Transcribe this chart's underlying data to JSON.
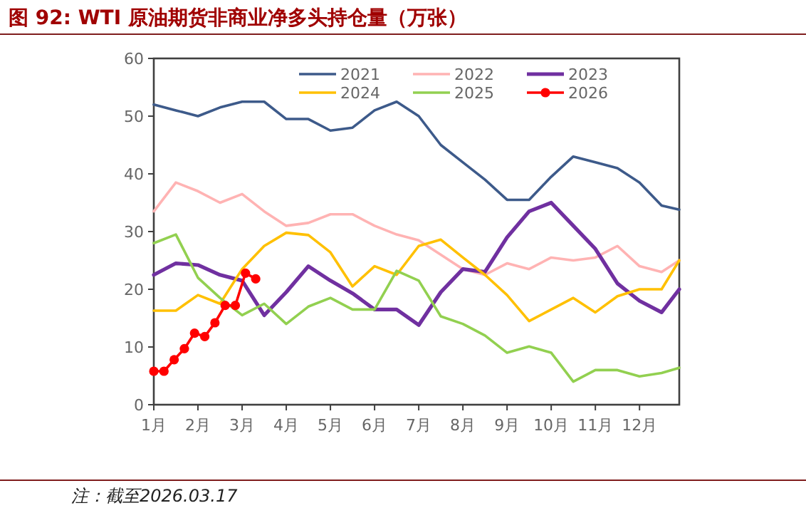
{
  "chart_data": {
    "type": "line",
    "title": "图 92:  WTI 原油期货非商业净多头持仓量（万张）",
    "annotations": [
      "注：截至2026.03.17"
    ],
    "x": [
      1,
      1.5,
      2,
      2.5,
      3,
      3.5,
      4,
      4.5,
      5,
      5.5,
      6,
      6.5,
      7,
      7.5,
      8,
      8.5,
      9,
      9.5,
      10,
      10.5,
      11,
      11.5,
      12,
      12.5,
      12.9
    ],
    "series": [
      {
        "name": "2021",
        "color": "#3d5a8a",
        "values": [
          52,
          51,
          50,
          51.5,
          52.5,
          52.5,
          49.5,
          49.5,
          47.5,
          48,
          51,
          52.5,
          50,
          45,
          42,
          39,
          35.5,
          35.5,
          39.5,
          43,
          42,
          41,
          38.5,
          34.5,
          33.8
        ]
      },
      {
        "name": "2022",
        "color": "#ffb3b3",
        "values": [
          33.5,
          38.5,
          37,
          35,
          36.5,
          33.5,
          31,
          31.5,
          33,
          33,
          31,
          29.5,
          28.5,
          26,
          23.5,
          22.5,
          24.5,
          23.5,
          25.5,
          25,
          25.5,
          27.5,
          24,
          23,
          25
        ]
      },
      {
        "name": "2023",
        "color": "#7030a0",
        "values": [
          22.5,
          24.5,
          24.2,
          22.5,
          21.5,
          15.5,
          19.5,
          24,
          21.5,
          19.3,
          16.5,
          16.5,
          13.8,
          19.5,
          23.5,
          23,
          29,
          33.5,
          35,
          31,
          27,
          21,
          18,
          16,
          20
        ]
      },
      {
        "name": "2024",
        "color": "#ffc000",
        "values": [
          16.3,
          16.3,
          19,
          17.5,
          23.5,
          27.5,
          29.8,
          29.4,
          26.4,
          20.5,
          24,
          22.5,
          27.5,
          28.6,
          25.5,
          22.5,
          19,
          14.5,
          16.5,
          18.5,
          16,
          18.8,
          20,
          20,
          25
        ]
      },
      {
        "name": "2025",
        "color": "#92d050",
        "values": [
          28,
          29.5,
          22,
          18.5,
          15.5,
          17.5,
          14,
          17,
          18.5,
          16.5,
          16.5,
          23.2,
          21.5,
          15.3,
          14,
          12,
          9,
          10.1,
          9,
          4,
          6,
          6,
          4.9,
          5.5,
          6.4
        ]
      },
      {
        "name": "2026",
        "color": "#ff0000",
        "marker": "circle",
        "x": [
          1,
          1.2308,
          1.4615,
          1.6923,
          1.9231,
          2.1538,
          2.3846,
          2.6154,
          2.8462,
          3.0769,
          3.3077
        ],
        "values": [
          5.8,
          5.8,
          7.8,
          9.7,
          12.4,
          11.8,
          14.2,
          17.2,
          17.2,
          22.8,
          21.8
        ]
      }
    ],
    "ylim": [
      0,
      60
    ],
    "yticks": [
      0,
      10,
      20,
      30,
      40,
      50,
      60
    ],
    "xlim": [
      1,
      12.9
    ],
    "xticks": [
      {
        "value": 1,
        "label": "1月"
      },
      {
        "value": 2,
        "label": "2月"
      },
      {
        "value": 3,
        "label": "3月"
      },
      {
        "value": 4,
        "label": "4月"
      },
      {
        "value": 5,
        "label": "5月"
      },
      {
        "value": 6,
        "label": "6月"
      },
      {
        "value": 7,
        "label": "7月"
      },
      {
        "value": 8,
        "label": "8月"
      },
      {
        "value": 9,
        "label": "9月"
      },
      {
        "value": 10,
        "label": "10月"
      },
      {
        "value": 11,
        "label": "11月"
      },
      {
        "value": 12,
        "label": "12月"
      }
    ],
    "legend": "top",
    "grid": false
  }
}
